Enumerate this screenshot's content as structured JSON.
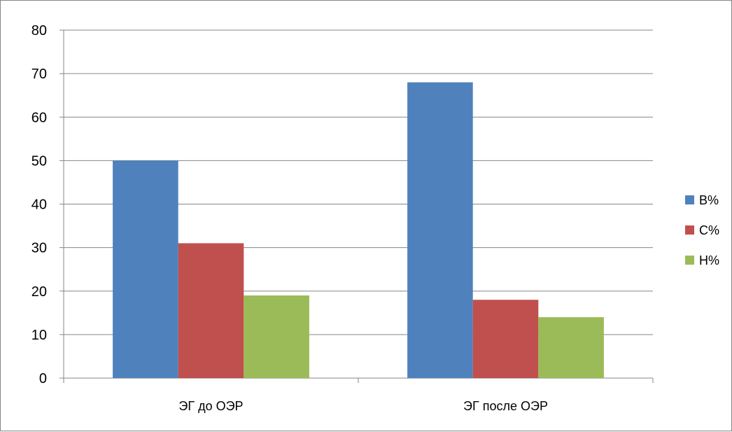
{
  "chart_data": {
    "type": "bar",
    "title": "",
    "xlabel": "",
    "ylabel": "",
    "categories": [
      "ЭГ до ОЭР",
      "ЭГ после ОЭР"
    ],
    "series": [
      {
        "name": "В%",
        "values": [
          50,
          68
        ],
        "color": "#4F81BD"
      },
      {
        "name": "С%",
        "values": [
          31,
          18
        ],
        "color": "#C0504D"
      },
      {
        "name": "Н%",
        "values": [
          19,
          14
        ],
        "color": "#9BBB59"
      }
    ],
    "ylim": [
      0,
      80
    ],
    "yticks": [
      "0",
      "10",
      "20",
      "30",
      "40",
      "50",
      "60",
      "70",
      "80"
    ],
    "grid": true,
    "legend_position": "right"
  }
}
